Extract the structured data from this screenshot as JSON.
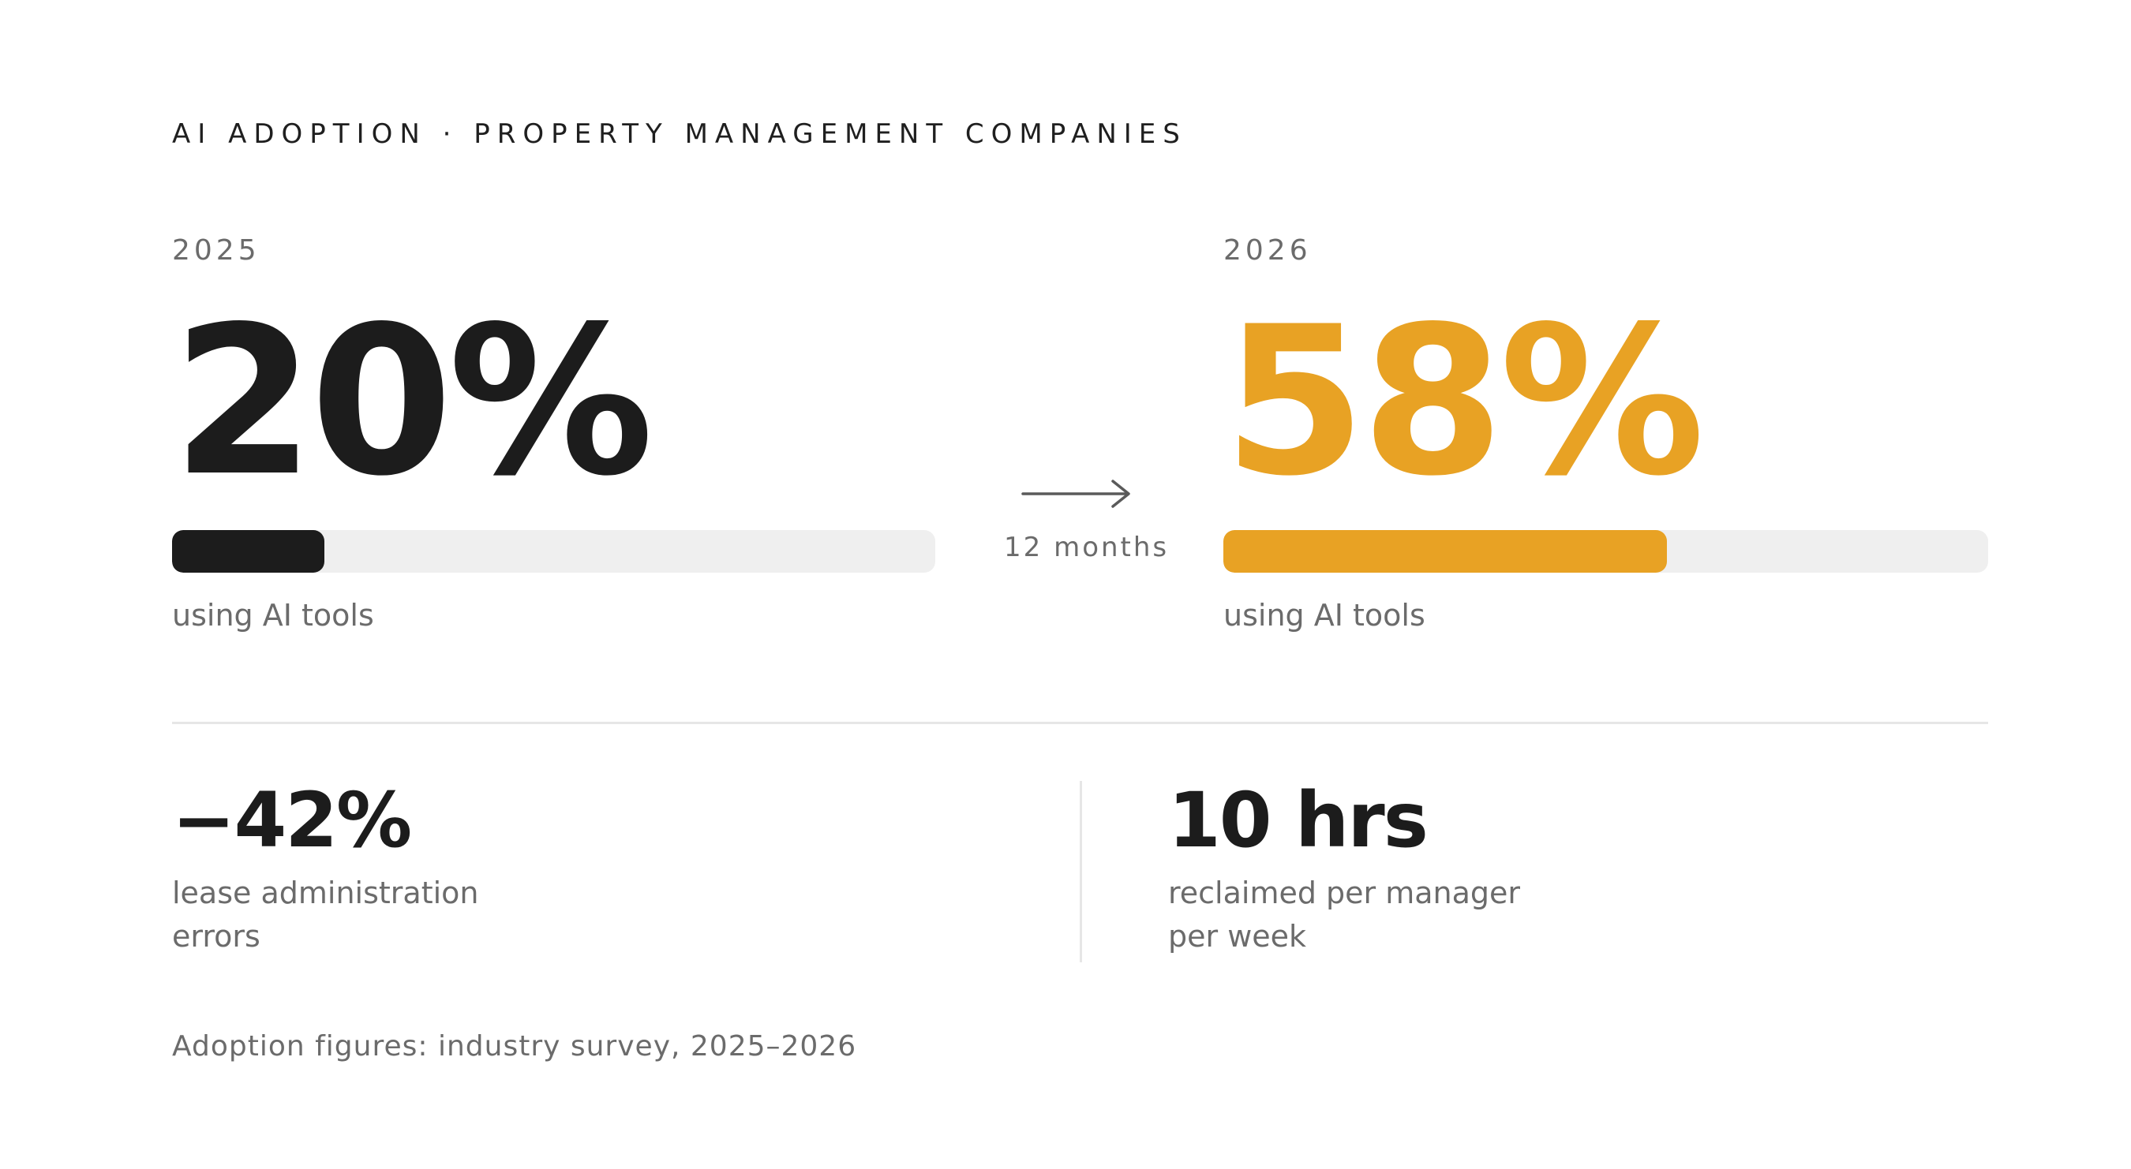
{
  "header": {
    "kicker": "AI ADOPTION · PROPERTY MANAGEMENT COMPANIES"
  },
  "chart_data": {
    "type": "bar",
    "title": "AI ADOPTION · PROPERTY MANAGEMENT COMPANIES",
    "unit": "%",
    "ylim": [
      0,
      100
    ],
    "categories": [
      "2025",
      "2026"
    ],
    "values": [
      20,
      58
    ],
    "value_labels": [
      "20%",
      "58%"
    ],
    "caption": "using AI tools",
    "colors": [
      "#1c1c1c",
      "#e8a224"
    ],
    "track_color": "#efefef"
  },
  "transition": {
    "icon": "right-arrow-icon",
    "label": "12 months"
  },
  "stats": [
    {
      "value": "−42%",
      "lines": [
        "lease administration",
        "errors"
      ]
    },
    {
      "value": "10 hrs",
      "lines": [
        "reclaimed per manager",
        "per week"
      ]
    }
  ],
  "footnote": "Adoption figures: industry survey, 2025–2026",
  "colors": {
    "accent": "#e8a224",
    "dark": "#1c1c1c",
    "muted_text": "#6b6b6b",
    "divider": "#e6e6e6"
  }
}
